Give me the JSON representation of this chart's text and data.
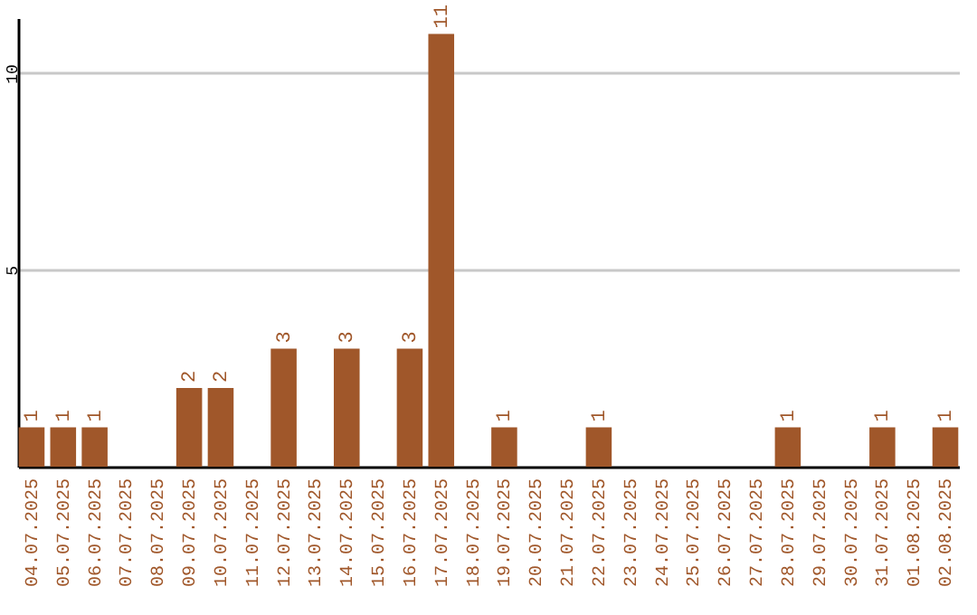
{
  "chart_data": {
    "type": "bar",
    "categories": [
      "04.07.2025",
      "05.07.2025",
      "06.07.2025",
      "07.07.2025",
      "08.07.2025",
      "09.07.2025",
      "10.07.2025",
      "11.07.2025",
      "12.07.2025",
      "13.07.2025",
      "14.07.2025",
      "15.07.2025",
      "16.07.2025",
      "17.07.2025",
      "18.07.2025",
      "19.07.2025",
      "20.07.2025",
      "21.07.2025",
      "22.07.2025",
      "23.07.2025",
      "24.07.2025",
      "25.07.2025",
      "26.07.2025",
      "27.07.2025",
      "28.07.2025",
      "29.07.2025",
      "30.07.2025",
      "31.07.2025",
      "01.08.2025",
      "02.08.2025"
    ],
    "values": [
      1,
      1,
      1,
      0,
      0,
      2,
      2,
      0,
      3,
      0,
      3,
      0,
      3,
      11,
      0,
      1,
      0,
      0,
      1,
      0,
      0,
      0,
      0,
      0,
      1,
      0,
      0,
      1,
      0,
      1
    ],
    "value_labels": [
      "1",
      "1",
      "1",
      null,
      null,
      "2",
      "2",
      null,
      "3",
      null,
      "3",
      null,
      "3",
      "11",
      null,
      "1",
      null,
      null,
      "1",
      null,
      null,
      null,
      null,
      null,
      "1",
      null,
      null,
      "1",
      null,
      "1"
    ],
    "color": "#a0572a",
    "ylim": [
      0,
      11.4
    ],
    "yticks": [
      5,
      10
    ],
    "grid": "y"
  }
}
